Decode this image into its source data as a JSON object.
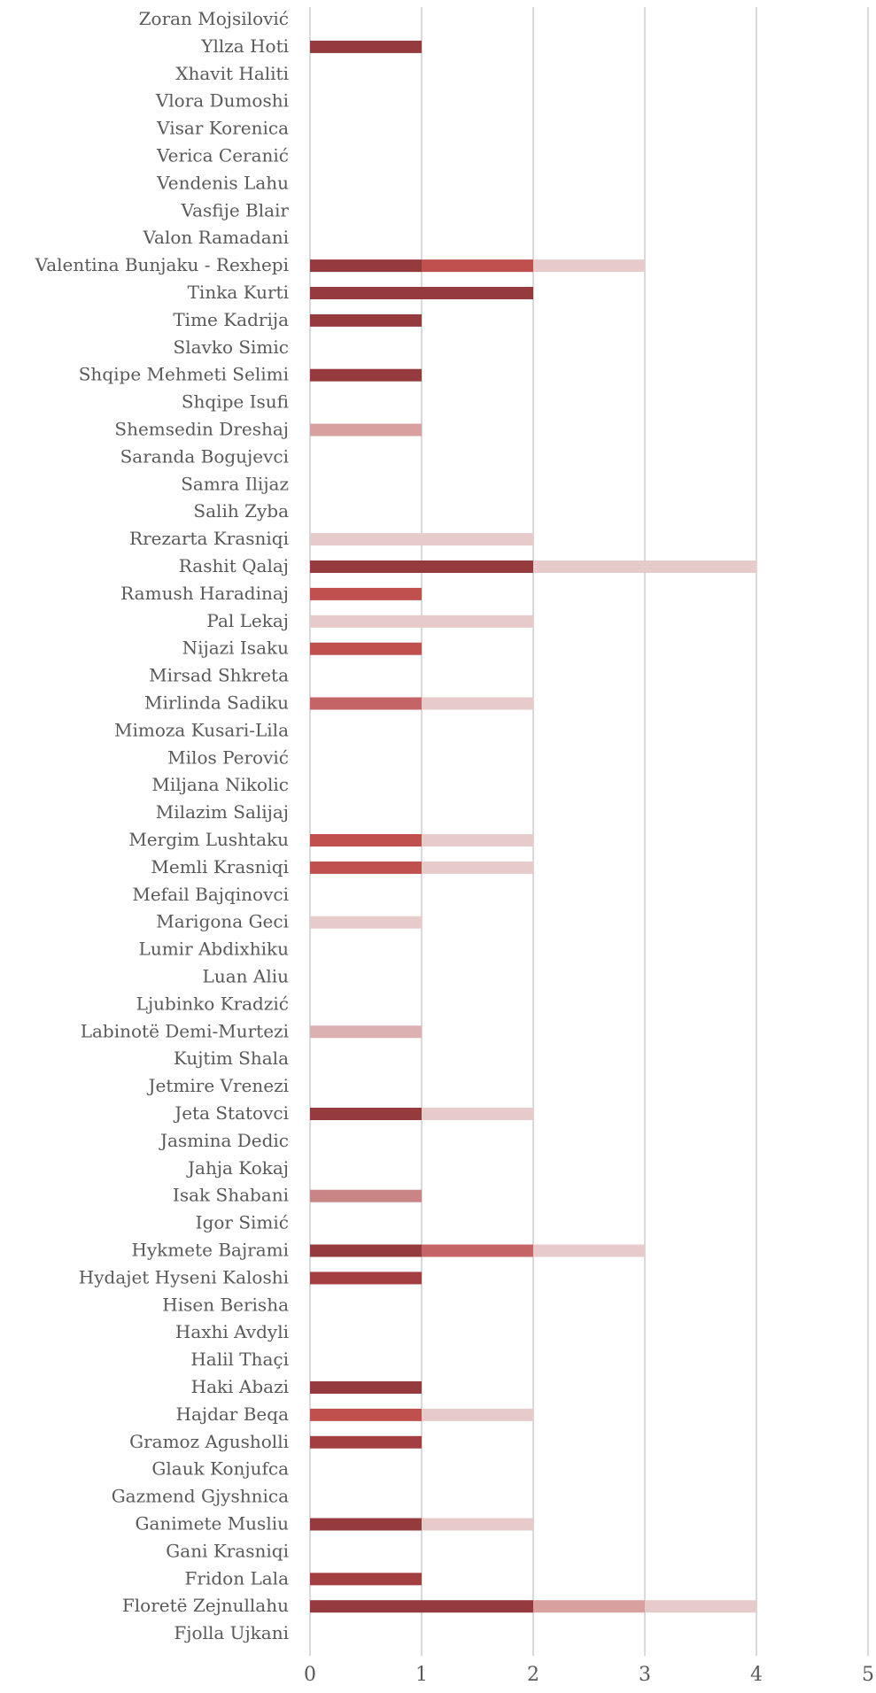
{
  "chart_data": {
    "type": "bar",
    "orientation": "horizontal",
    "stacked": true,
    "xlim": [
      0,
      5
    ],
    "x_ticks": [
      0,
      1,
      2,
      3,
      4,
      5
    ],
    "x_tick_labels": [
      "0",
      "1",
      "2",
      "3",
      "4",
      "5"
    ],
    "grid": true,
    "legend": "none",
    "categories": [
      "Zoran Mojsilović",
      "Yllza Hoti",
      "Xhavit Haliti",
      "Vlora Dumoshi",
      "Visar Korenica",
      "Verica Ceranić",
      "Vendenis Lahu",
      "Vasfije Blair",
      "Valon Ramadani",
      "Valentina Bunjaku - Rexhepi",
      "Tinka Kurti",
      "Time Kadrija",
      "Slavko Simic",
      "Shqipe Mehmeti Selimi",
      "Shqipe Isufi",
      "Shemsedin Dreshaj",
      "Saranda Bogujevci",
      "Samra Ilijaz",
      "Salih Zyba",
      "Rrezarta Krasniqi",
      "Rashit Qalaj",
      "Ramush Haradinaj",
      "Pal Lekaj",
      "Nijazi Isaku",
      "Mirsad Shkreta",
      "Mirlinda Sadiku",
      "Mimoza Kusari-Lila",
      "Milos Perović",
      "Miljana Nikolic",
      "Milazim Salijaj",
      "Mergim Lushtaku",
      "Memli Krasniqi",
      "Mefail Bajqinovci",
      "Marigona Geci",
      "Lumir Abdixhiku",
      "Luan Aliu",
      "Ljubinko Kradzić",
      "Labinotë Demi-Murtezi",
      "Kujtim Shala",
      "Jetmire Vrenezi",
      "Jeta Statovci",
      "Jasmina Dedic",
      "Jahja Kokaj",
      "Isak Shabani",
      "Igor Simić",
      "Hykmete Bajrami",
      "Hydajet Hyseni Kaloshi",
      "Hisen Berisha",
      "Haxhi Avdyli",
      "Halil Thaçi",
      "Haki Abazi",
      "Hajdar Beqa",
      "Gramoz Agusholli",
      "Glauk Konjufca",
      "Gazmend Gjyshnica",
      "Ganimete Musliu",
      "Gani Krasniqi",
      "Fridon Lala",
      "Floretë Zejnullahu",
      "Fjolla Ujkani"
    ],
    "segments": [
      [],
      [
        {
          "value": 1,
          "color": "#953a3d"
        }
      ],
      [],
      [],
      [],
      [],
      [],
      [],
      [],
      [
        {
          "value": 1,
          "color": "#953a3d"
        },
        {
          "value": 1,
          "color": "#c0504d"
        },
        {
          "value": 1,
          "color": "#e6cbca"
        }
      ],
      [
        {
          "value": 2,
          "color": "#953a3d"
        }
      ],
      [
        {
          "value": 1,
          "color": "#953a3d"
        }
      ],
      [],
      [
        {
          "value": 1,
          "color": "#953a3d"
        }
      ],
      [],
      [
        {
          "value": 1,
          "color": "#d9a0a0"
        }
      ],
      [],
      [],
      [],
      [
        {
          "value": 2,
          "color": "#e6cbca"
        }
      ],
      [
        {
          "value": 2,
          "color": "#953a3d"
        },
        {
          "value": 2,
          "color": "#e6cbca"
        }
      ],
      [
        {
          "value": 1,
          "color": "#c0504d"
        }
      ],
      [
        {
          "value": 2,
          "color": "#e6cbca"
        }
      ],
      [
        {
          "value": 1,
          "color": "#c0504d"
        }
      ],
      [],
      [
        {
          "value": 1,
          "color": "#c46466"
        },
        {
          "value": 1,
          "color": "#e6cbca"
        }
      ],
      [],
      [],
      [],
      [],
      [
        {
          "value": 1,
          "color": "#c0504d"
        },
        {
          "value": 1,
          "color": "#e6cbca"
        }
      ],
      [
        {
          "value": 1,
          "color": "#c0504d"
        },
        {
          "value": 1,
          "color": "#e6cbca"
        }
      ],
      [],
      [
        {
          "value": 1,
          "color": "#e6cbca"
        }
      ],
      [],
      [],
      [],
      [
        {
          "value": 1,
          "color": "#dbb1b1"
        }
      ],
      [],
      [],
      [
        {
          "value": 1,
          "color": "#953a3d"
        },
        {
          "value": 1,
          "color": "#e6cbca"
        }
      ],
      [],
      [],
      [
        {
          "value": 1,
          "color": "#c98586"
        }
      ],
      [],
      [
        {
          "value": 1,
          "color": "#953a3d"
        },
        {
          "value": 1,
          "color": "#c46466"
        },
        {
          "value": 1,
          "color": "#e6cbca"
        }
      ],
      [
        {
          "value": 1,
          "color": "#a33e41"
        }
      ],
      [],
      [],
      [],
      [
        {
          "value": 1,
          "color": "#953a3d"
        }
      ],
      [
        {
          "value": 1,
          "color": "#c0504d"
        },
        {
          "value": 1,
          "color": "#e6cbca"
        }
      ],
      [
        {
          "value": 1,
          "color": "#a33e41"
        }
      ],
      [],
      [],
      [
        {
          "value": 1,
          "color": "#953a3d"
        },
        {
          "value": 1,
          "color": "#e6cbca"
        }
      ],
      [],
      [
        {
          "value": 1,
          "color": "#a33e41"
        }
      ],
      [
        {
          "value": 2,
          "color": "#953a3d"
        },
        {
          "value": 1,
          "color": "#d9a0a0"
        },
        {
          "value": 1,
          "color": "#e6cbca"
        }
      ],
      []
    ]
  }
}
